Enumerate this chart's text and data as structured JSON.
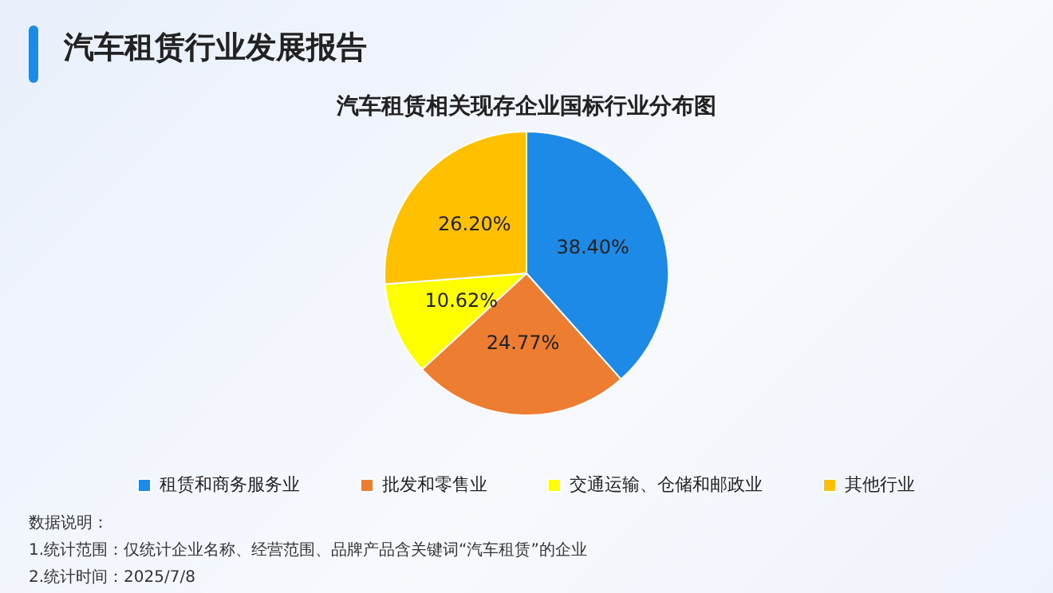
{
  "chart_data": {
    "type": "pie",
    "title": "汽车租赁行业发展报告",
    "subtitle": "汽车租赁相关现存企业国标行业分布图",
    "categories": [
      "租赁和商务服务业",
      "批发和零售业",
      "交通运输、仓储和邮政业",
      "其他行业"
    ],
    "values": [
      38.4,
      24.77,
      10.62,
      26.2
    ],
    "colors": [
      "#1e8ae8",
      "#ed7d31",
      "#ffff00",
      "#ffc000"
    ],
    "value_labels": [
      "38.40%",
      "24.77%",
      "10.62%",
      "26.20%"
    ],
    "legend": "bottom",
    "annotations": [
      "数据说明：",
      "1.统计范围：仅统计企业名称、经营范围、品牌产品含关键词“汽车租赁”的企业",
      "2.统计时间：2025/7/8"
    ]
  }
}
